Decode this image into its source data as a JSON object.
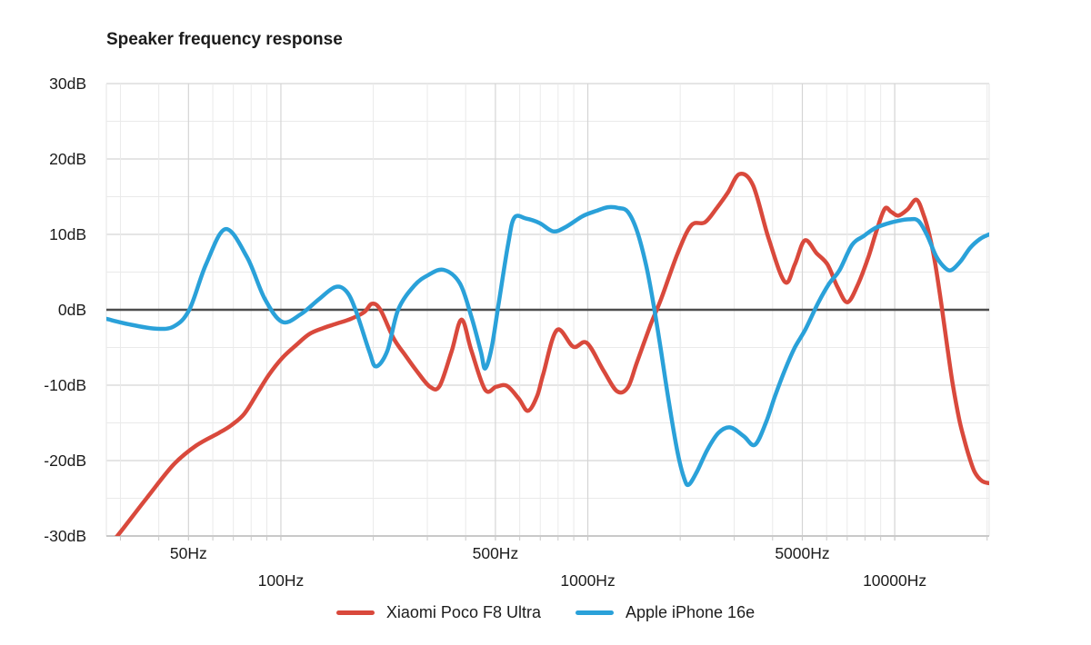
{
  "chart_data": {
    "type": "line",
    "title": "Speaker frequency response",
    "legend_position": "bottom-center",
    "x_axis": {
      "scale": "log",
      "unit": "Hz",
      "min": 27,
      "max": 20310,
      "labels": [
        {
          "text": "50Hz",
          "value": 50,
          "row": 1
        },
        {
          "text": "100Hz",
          "value": 100,
          "row": 2
        },
        {
          "text": "500Hz",
          "value": 500,
          "row": 1
        },
        {
          "text": "1000Hz",
          "value": 1000,
          "row": 2
        },
        {
          "text": "5000Hz",
          "value": 5000,
          "row": 1
        },
        {
          "text": "10000Hz",
          "value": 10000,
          "row": 2
        }
      ],
      "gridlines_major": [
        50,
        100,
        500,
        1000,
        5000,
        10000
      ],
      "gridlines_minor": [
        30,
        40,
        60,
        70,
        80,
        90,
        200,
        300,
        400,
        600,
        700,
        800,
        900,
        2000,
        3000,
        4000,
        6000,
        7000,
        8000,
        9000,
        20000
      ]
    },
    "y_axis": {
      "unit": "dB",
      "min": -30,
      "max": 30,
      "major_step": 10,
      "minor_step": 5,
      "zero_line": true,
      "labels": [
        {
          "text": "30dB",
          "value": 30
        },
        {
          "text": "20dB",
          "value": 20
        },
        {
          "text": "10dB",
          "value": 10
        },
        {
          "text": "0dB",
          "value": 0
        },
        {
          "text": "-10dB",
          "value": -10
        },
        {
          "text": "-20dB",
          "value": -20
        },
        {
          "text": "-30dB",
          "value": -30
        }
      ]
    },
    "series": [
      {
        "name": "Xiaomi Poco F8 Ultra",
        "color": "#d9493c",
        "points": [
          [
            27,
            -31.5
          ],
          [
            29.3,
            -30
          ],
          [
            36.5,
            -25
          ],
          [
            44.8,
            -20.5
          ],
          [
            53,
            -18
          ],
          [
            63,
            -16.3
          ],
          [
            69,
            -15.3
          ],
          [
            76,
            -13.8
          ],
          [
            84,
            -11
          ],
          [
            91.5,
            -8.6
          ],
          [
            101,
            -6.4
          ],
          [
            112,
            -4.7
          ],
          [
            124,
            -3.2
          ],
          [
            138,
            -2.4
          ],
          [
            153,
            -1.8
          ],
          [
            169,
            -1.2
          ],
          [
            187,
            -0.3
          ],
          [
            198,
            0.8
          ],
          [
            211,
            0
          ],
          [
            233,
            -3.8
          ],
          [
            254,
            -6
          ],
          [
            278,
            -8.2
          ],
          [
            306,
            -10.2
          ],
          [
            329,
            -10.1
          ],
          [
            360,
            -5.5
          ],
          [
            388,
            -1.3
          ],
          [
            418,
            -5.5
          ],
          [
            463,
            -10.6
          ],
          [
            503,
            -10.2
          ],
          [
            545,
            -10.1
          ],
          [
            596,
            -11.8
          ],
          [
            638,
            -13.4
          ],
          [
            683,
            -11.5
          ],
          [
            716,
            -8.5
          ],
          [
            793,
            -2.7
          ],
          [
            897,
            -4.9
          ],
          [
            993,
            -4.4
          ],
          [
            1123,
            -8
          ],
          [
            1244,
            -10.8
          ],
          [
            1350,
            -10.3
          ],
          [
            1445,
            -7
          ],
          [
            1601,
            -2
          ],
          [
            1736,
            1.5
          ],
          [
            1963,
            7.5
          ],
          [
            2174,
            11.2
          ],
          [
            2409,
            11.6
          ],
          [
            2631,
            13.5
          ],
          [
            2856,
            15.5
          ],
          [
            3120,
            18
          ],
          [
            3455,
            16.5
          ],
          [
            3880,
            9.5
          ],
          [
            4385,
            3.7
          ],
          [
            4726,
            6
          ],
          [
            5093,
            9.2
          ],
          [
            5567,
            7.5
          ],
          [
            6040,
            6
          ],
          [
            6512,
            3
          ],
          [
            7018,
            1
          ],
          [
            7615,
            3.5
          ],
          [
            8208,
            7
          ],
          [
            8727,
            10.5
          ],
          [
            9280,
            13.4
          ],
          [
            9732,
            13
          ],
          [
            10276,
            12.5
          ],
          [
            11000,
            13.3
          ],
          [
            11780,
            14.6
          ],
          [
            12440,
            12.5
          ],
          [
            12953,
            10
          ],
          [
            13500,
            6.5
          ],
          [
            14160,
            1
          ],
          [
            14840,
            -5
          ],
          [
            15470,
            -10
          ],
          [
            16220,
            -14.5
          ],
          [
            16790,
            -17
          ],
          [
            17480,
            -19.5
          ],
          [
            18210,
            -21.5
          ],
          [
            19230,
            -22.7
          ],
          [
            20310,
            -23
          ]
        ]
      },
      {
        "name": "Apple iPhone 16e",
        "color": "#2aa1d9",
        "points": [
          [
            27,
            -1.2
          ],
          [
            31.8,
            -1.9
          ],
          [
            39,
            -2.5
          ],
          [
            44.8,
            -2.2
          ],
          [
            50.3,
            0
          ],
          [
            57,
            6
          ],
          [
            66,
            10.7
          ],
          [
            77.5,
            7
          ],
          [
            88.5,
            1.5
          ],
          [
            101,
            -1.6
          ],
          [
            116,
            -0.6
          ],
          [
            133,
            1.4
          ],
          [
            150,
            3
          ],
          [
            163,
            2.5
          ],
          [
            175,
            0
          ],
          [
            194,
            -5.5
          ],
          [
            204,
            -7.5
          ],
          [
            222,
            -5.5
          ],
          [
            241,
            0
          ],
          [
            272,
            3.2
          ],
          [
            302,
            4.6
          ],
          [
            339,
            5.3
          ],
          [
            383,
            3.5
          ],
          [
            418,
            -1
          ],
          [
            448,
            -5.5
          ],
          [
            463,
            -7.8
          ],
          [
            486,
            -5
          ],
          [
            513,
            1
          ],
          [
            549,
            8.5
          ],
          [
            576,
            12.2
          ],
          [
            629,
            12.1
          ],
          [
            697,
            11.5
          ],
          [
            772,
            10.4
          ],
          [
            849,
            11
          ],
          [
            960,
            12.4
          ],
          [
            1063,
            13.1
          ],
          [
            1162,
            13.6
          ],
          [
            1261,
            13.5
          ],
          [
            1350,
            13
          ],
          [
            1445,
            10.5
          ],
          [
            1547,
            6
          ],
          [
            1633,
            1
          ],
          [
            1725,
            -5
          ],
          [
            1833,
            -12
          ],
          [
            1963,
            -19
          ],
          [
            2059,
            -22.3
          ],
          [
            2130,
            -23.2
          ],
          [
            2265,
            -21.5
          ],
          [
            2457,
            -18.5
          ],
          [
            2669,
            -16.3
          ],
          [
            2915,
            -15.6
          ],
          [
            3228,
            -16.8
          ],
          [
            3503,
            -17.9
          ],
          [
            3802,
            -15
          ],
          [
            4070,
            -11.5
          ],
          [
            4385,
            -8
          ],
          [
            4726,
            -5
          ],
          [
            5131,
            -2.5
          ],
          [
            5644,
            1
          ],
          [
            6124,
            3.5
          ],
          [
            6601,
            5.2
          ],
          [
            7260,
            8.6
          ],
          [
            7933,
            9.8
          ],
          [
            8606,
            10.8
          ],
          [
            9406,
            11.4
          ],
          [
            10276,
            11.8
          ],
          [
            11150,
            12
          ],
          [
            11940,
            11.8
          ],
          [
            12780,
            9.8
          ],
          [
            13680,
            7
          ],
          [
            14650,
            5.5
          ],
          [
            15360,
            5.3
          ],
          [
            16440,
            6.5
          ],
          [
            17600,
            8.2
          ],
          [
            18970,
            9.4
          ],
          [
            20310,
            10
          ]
        ]
      }
    ]
  },
  "colors": {
    "background": "#ffffff",
    "text": "#1c1c1c",
    "grid_minor": "#eaeaea",
    "grid_major": "#d5d5d5",
    "zero_line": "#4d4d4d",
    "axis_line": "#c9c9c9"
  }
}
